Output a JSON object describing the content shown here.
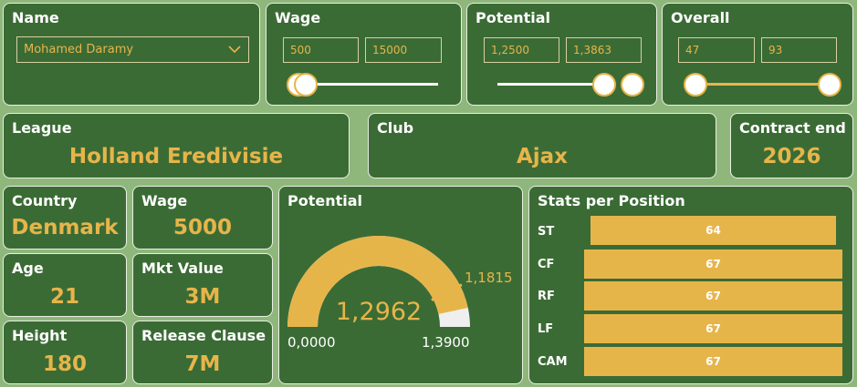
{
  "filters": {
    "name": {
      "title": "Name",
      "selected": "Mohamed Daramy",
      "icon": "chevron-down-icon"
    },
    "wage": {
      "title": "Wage",
      "min": "500",
      "max": "15000"
    },
    "potential": {
      "title": "Potential",
      "min": "1,2500",
      "max": "1,3863"
    },
    "overall": {
      "title": "Overall",
      "min": "47",
      "max": "93"
    }
  },
  "cards": {
    "league": {
      "title": "League",
      "value": "Holland Eredivisie"
    },
    "club": {
      "title": "Club",
      "value": "Ajax"
    },
    "contract": {
      "title": "Contract end",
      "value": "2026"
    },
    "country": {
      "title": "Country",
      "value": "Denmark"
    },
    "wage": {
      "title": "Wage",
      "value": "5000"
    },
    "age": {
      "title": "Age",
      "value": "21"
    },
    "mkt_value": {
      "title": "Mkt Value",
      "value": "3M"
    },
    "height": {
      "title": "Height",
      "value": "180"
    },
    "release_clause": {
      "title": "Release Clause",
      "value": "7M"
    }
  },
  "gauge": {
    "title": "Potential",
    "value": "1,2962",
    "target": "1,1815",
    "min": "0,0000",
    "max": "1,3900",
    "value_num": 1.2962,
    "target_num": 1.1815,
    "min_num": 0,
    "max_num": 1.39
  },
  "stats": {
    "title": "Stats per Position",
    "positions": [
      {
        "label": "ST",
        "value": "64"
      },
      {
        "label": "CF",
        "value": "67"
      },
      {
        "label": "RF",
        "value": "67"
      },
      {
        "label": "LF",
        "value": "67"
      },
      {
        "label": "CAM",
        "value": "67"
      }
    ]
  },
  "colors": {
    "background": "#8fb77c",
    "card": "#3b6b35",
    "accent": "#e6b54a",
    "gauge_remaining": "#efefef"
  }
}
